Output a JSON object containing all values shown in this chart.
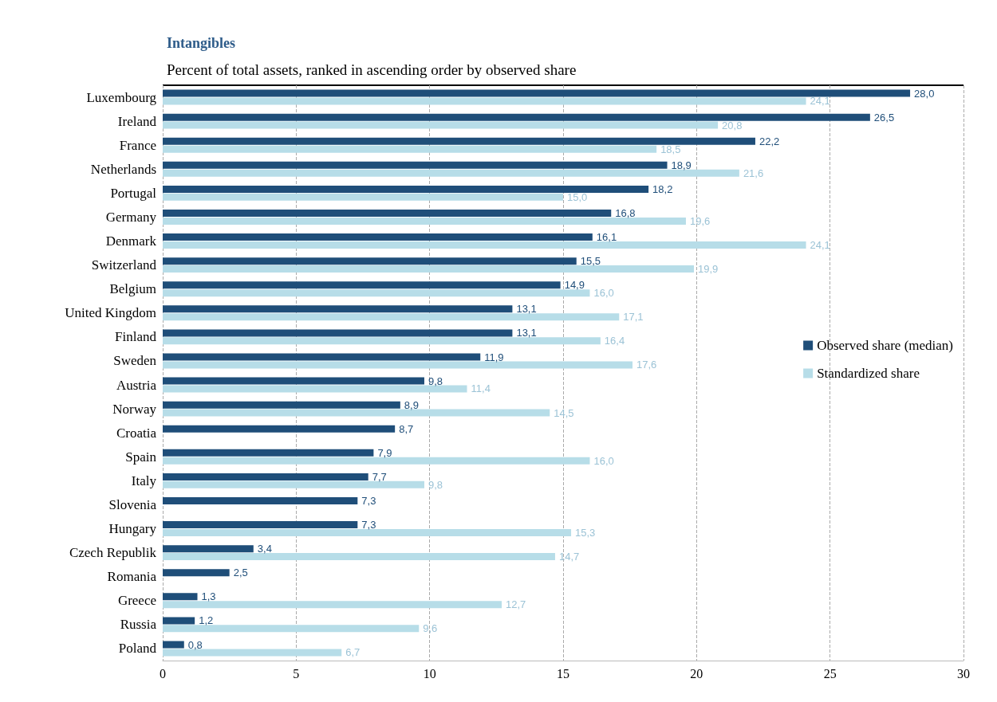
{
  "chart_data": {
    "type": "bar",
    "orientation": "horizontal",
    "title": "Intangibles",
    "subtitle": "Percent of total assets, ranked in ascending order by observed share",
    "categories": [
      "Luxembourg",
      "Ireland",
      "France",
      "Netherlands",
      "Portugal",
      "Germany",
      "Denmark",
      "Switzerland",
      "Belgium",
      "United Kingdom",
      "Finland",
      "Sweden",
      "Austria",
      "Norway",
      "Croatia",
      "Spain",
      "Italy",
      "Slovenia",
      "Hungary",
      "Czech Republik",
      "Romania",
      "Greece",
      "Russia",
      "Poland"
    ],
    "series": [
      {
        "name": "Observed share (median)",
        "color": "#1f4e79",
        "values": [
          28.0,
          26.5,
          22.2,
          18.9,
          18.2,
          16.8,
          16.1,
          15.5,
          14.9,
          13.1,
          13.1,
          11.9,
          9.8,
          8.9,
          8.7,
          7.9,
          7.7,
          7.3,
          7.3,
          3.4,
          2.5,
          1.3,
          1.2,
          0.8
        ],
        "value_labels": [
          "28,0",
          "26,5",
          "22,2",
          "18,9",
          "18,2",
          "16,8",
          "16,1",
          "15,5",
          "14,9",
          "13,1",
          "13,1",
          "11,9",
          "9,8",
          "8,9",
          "8,7",
          "7,9",
          "7,7",
          "7,3",
          "7,3",
          "3,4",
          "2,5",
          "1,3",
          "1,2",
          "0,8"
        ]
      },
      {
        "name": "Standardized share",
        "color": "#b7dde8",
        "values": [
          24.1,
          20.8,
          18.5,
          21.6,
          15.0,
          19.6,
          24.1,
          19.9,
          16.0,
          17.1,
          16.4,
          17.6,
          11.4,
          14.5,
          null,
          16.0,
          9.8,
          null,
          15.3,
          14.7,
          null,
          12.7,
          9.6,
          6.7
        ],
        "value_labels": [
          "24,1",
          "20,8",
          "18,5",
          "21,6",
          "15,0",
          "19,6",
          "24,1",
          "19,9",
          "16,0",
          "17,1",
          "16,4",
          "17,6",
          "11,4",
          "14,5",
          null,
          "16,0",
          "9,8",
          null,
          "15,3",
          "14,7",
          null,
          "12,7",
          "9,6",
          "6,7"
        ]
      }
    ],
    "xlim": [
      0,
      30
    ],
    "xticks": [
      0,
      5,
      10,
      15,
      20,
      25,
      30
    ],
    "grid": "x",
    "legend": "right"
  }
}
